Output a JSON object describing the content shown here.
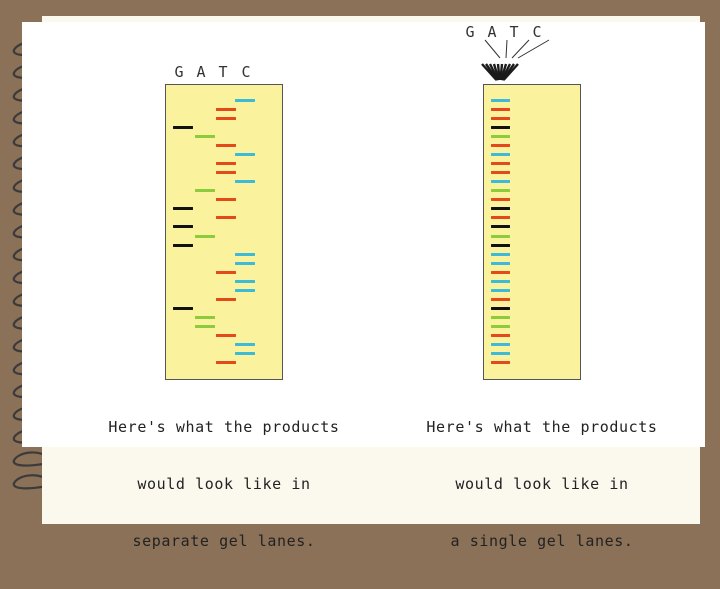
{
  "colors": {
    "G": "#111111",
    "A": "#8ccc3c",
    "T": "#e24a1b",
    "C": "#3cbad6"
  },
  "lane_letters": [
    "G",
    "A",
    "T",
    "C"
  ],
  "sequence_top_to_bottom": [
    "C",
    "T",
    "T",
    "G",
    "A",
    "T",
    "C",
    "T",
    "T",
    "C",
    "A",
    "T",
    "G",
    "T",
    "G",
    "A",
    "G",
    "C",
    "C",
    "T",
    "C",
    "C",
    "T",
    "G",
    "A",
    "A",
    "T",
    "C",
    "C",
    "T"
  ],
  "left_panel": {
    "caption_lines": [
      "Here's what the products",
      "would look like in",
      "separate gel lanes."
    ]
  },
  "right_panel": {
    "caption_lines": [
      "Here's what the products",
      "would look like in",
      "a single gel lanes."
    ]
  }
}
